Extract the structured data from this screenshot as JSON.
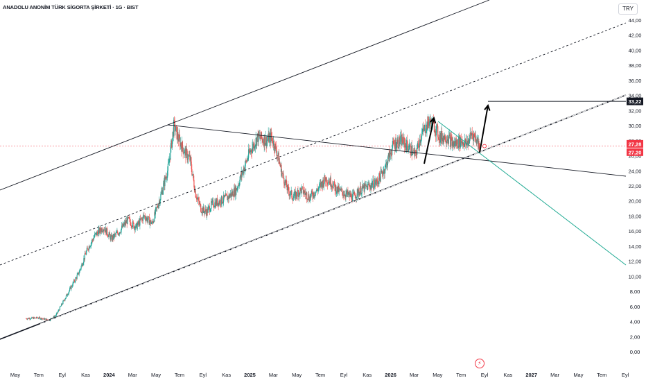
{
  "header": {
    "title": "ANADOLU ANONİM TÜRK SİGORTA ŞİRKETİ · 1G · BIST",
    "currency": "TRY"
  },
  "colors": {
    "up": "#26a69a",
    "down": "#ef5350",
    "line": "#131722",
    "teal_line": "#22ab94",
    "price_badge": "#f23645",
    "target_badge": "#131722",
    "grid": "#ffffff"
  },
  "icons": {
    "event": "flash-icon"
  },
  "chart_data": {
    "type": "candlestick",
    "y_axis": {
      "side": "right",
      "range": [
        -0.5,
        46.5
      ],
      "ticks": [
        "0,00",
        "2,00",
        "4,00",
        "6,00",
        "8,00",
        "10,00",
        "12,00",
        "14,00",
        "16,00",
        "18,00",
        "20,00",
        "22,00",
        "24,00",
        "26,00",
        "28,00",
        "30,00",
        "32,00",
        "34,00",
        "36,00",
        "38,00",
        "40,00",
        "42,00",
        "44,00"
      ]
    },
    "x_axis": {
      "ticks": [
        "May",
        "Tem",
        "Eyl",
        "Kas",
        "2024",
        "Mar",
        "May",
        "Tem",
        "Eyl",
        "Kas",
        "2025",
        "Mar",
        "May",
        "Tem",
        "Eyl",
        "Kas",
        "2026",
        "Mar",
        "May",
        "Tem",
        "Eyl",
        "Kas",
        "2027",
        "Mar",
        "May",
        "Tem",
        "Eyl"
      ]
    },
    "last_price": "27,28",
    "prev_price": "27,20",
    "target_price": "33,22",
    "grid": false,
    "drawings": [
      "ascending channel (upper, middle dashed, lower)",
      "bold lower trendline",
      "descending trendline",
      "descending teal projection line",
      "two upward arrows",
      "horizontal target line"
    ],
    "price_path": [
      [
        2023.33,
        4.4
      ],
      [
        2023.42,
        4.5
      ],
      [
        2023.5,
        4.2
      ],
      [
        2023.55,
        4.8
      ],
      [
        2023.6,
        6.5
      ],
      [
        2023.66,
        8.5
      ],
      [
        2023.72,
        10.5
      ],
      [
        2023.78,
        13.5
      ],
      [
        2023.84,
        15.5
      ],
      [
        2023.9,
        16.5
      ],
      [
        2023.96,
        15.0
      ],
      [
        2024.02,
        16.0
      ],
      [
        2024.08,
        17.5
      ],
      [
        2024.14,
        16.5
      ],
      [
        2024.2,
        18.0
      ],
      [
        2024.26,
        17.0
      ],
      [
        2024.32,
        20.5
      ],
      [
        2024.38,
        24.5
      ],
      [
        2024.42,
        30.0
      ],
      [
        2024.46,
        28.0
      ],
      [
        2024.5,
        26.5
      ],
      [
        2024.54,
        25.5
      ],
      [
        2024.58,
        21.0
      ],
      [
        2024.62,
        19.0
      ],
      [
        2024.66,
        18.5
      ],
      [
        2024.7,
        19.5
      ],
      [
        2024.76,
        20.0
      ],
      [
        2024.82,
        20.5
      ],
      [
        2024.88,
        21.5
      ],
      [
        2024.94,
        24.5
      ],
      [
        2024.98,
        26.5
      ],
      [
        2025.04,
        28.5
      ],
      [
        2025.1,
        28.0
      ],
      [
        2025.14,
        28.5
      ],
      [
        2025.18,
        26.5
      ],
      [
        2025.22,
        23.5
      ],
      [
        2025.26,
        21.5
      ],
      [
        2025.3,
        20.5
      ],
      [
        2025.36,
        21.5
      ],
      [
        2025.42,
        20.5
      ],
      [
        2025.48,
        21.5
      ],
      [
        2025.54,
        23.0
      ],
      [
        2025.58,
        22.5
      ],
      [
        2025.62,
        21.5
      ],
      [
        2025.68,
        21.0
      ],
      [
        2025.74,
        20.5
      ],
      [
        2025.8,
        21.5
      ],
      [
        2025.86,
        22.0
      ],
      [
        2025.92,
        22.5
      ],
      [
        2025.98,
        24.5
      ],
      [
        2026.04,
        27.5
      ],
      [
        2026.1,
        28.0
      ],
      [
        2026.16,
        27.0
      ],
      [
        2026.2,
        26.0
      ],
      [
        2026.24,
        28.5
      ],
      [
        2026.3,
        30.5
      ],
      [
        2026.34,
        30.0
      ],
      [
        2026.38,
        28.5
      ],
      [
        2026.44,
        28.5
      ],
      [
        2026.48,
        27.5
      ],
      [
        2026.54,
        28.0
      ],
      [
        2026.58,
        27.5
      ],
      [
        2026.62,
        29.0
      ],
      [
        2026.66,
        28.0
      ],
      [
        2026.68,
        27.28
      ]
    ]
  }
}
